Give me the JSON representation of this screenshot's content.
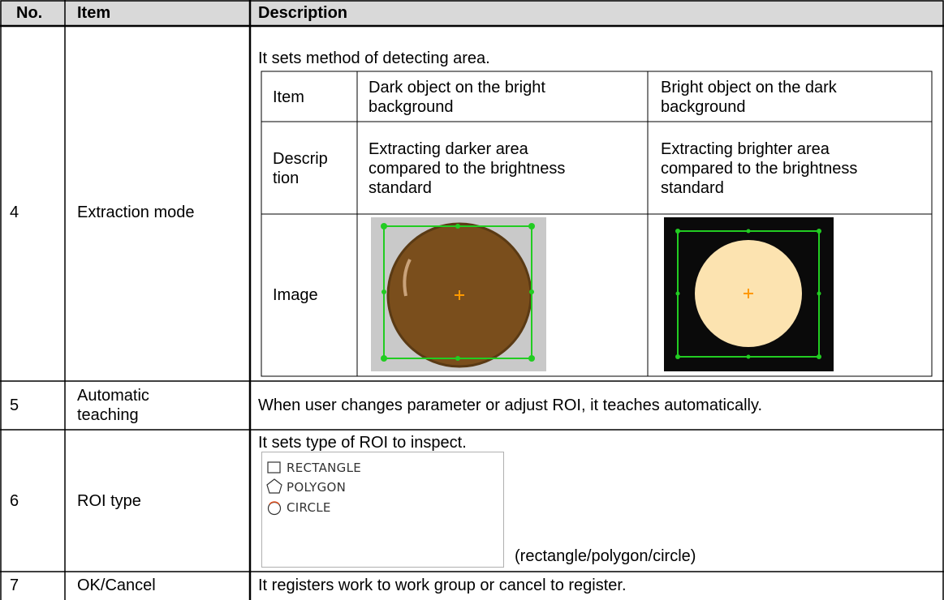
{
  "table": {
    "header": [
      "No.",
      "Item",
      "Description"
    ],
    "rows": [
      {
        "no": "4",
        "item": "Extraction mode",
        "description": {
          "intro": "It sets method of detecting area.",
          "table": [
            [
              "Item",
              "Dark object on the bright background",
              "Bright object on the dark background"
            ],
            [
              "Description",
              "Extracting darker area compared to the brightness standard",
              "Extracting brighter area compared to the brightness standard"
            ],
            [
              "Image"
            ]
          ]
        }
      },
      {
        "no": "5",
        "item": "Automatic teaching",
        "description": {
          "intro": "When user changes parameter or adjust ROI, it teaches automatically."
        }
      },
      {
        "no": "6",
        "item": "ROI type",
        "description": {
          "intro": "It sets type of ROI to inspect.",
          "options": [
            "RECTANGLE",
            "POLYGON",
            "CIRCLE"
          ],
          "note": "(rectangle/polygon/circle)"
        }
      },
      {
        "no": "7",
        "item": "OK/Cancel",
        "description": {
          "intro": "It registers work to work group or cancel to register."
        }
      }
    ]
  }
}
